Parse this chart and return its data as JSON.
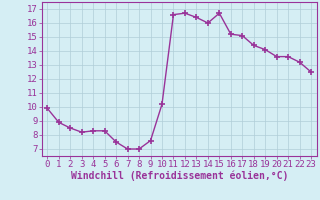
{
  "x": [
    0,
    1,
    2,
    3,
    4,
    5,
    6,
    7,
    8,
    9,
    10,
    11,
    12,
    13,
    14,
    15,
    16,
    17,
    18,
    19,
    20,
    21,
    22,
    23
  ],
  "y": [
    9.9,
    8.9,
    8.5,
    8.2,
    8.3,
    8.3,
    7.5,
    7.0,
    7.0,
    7.6,
    10.2,
    16.6,
    16.7,
    16.4,
    16.0,
    16.7,
    15.2,
    15.1,
    14.4,
    14.1,
    13.6,
    13.6,
    13.2,
    12.5
  ],
  "line_color": "#993399",
  "marker_color": "#993399",
  "bg_color": "#d5eef4",
  "grid_color": "#b0cdd8",
  "axis_color": "#993399",
  "tick_color": "#993399",
  "xlabel": "Windchill (Refroidissement éolien,°C)",
  "ylim": [
    6.5,
    17.5
  ],
  "xlim": [
    -0.5,
    23.5
  ],
  "yticks": [
    7,
    8,
    9,
    10,
    11,
    12,
    13,
    14,
    15,
    16,
    17
  ],
  "xticks": [
    0,
    1,
    2,
    3,
    4,
    5,
    6,
    7,
    8,
    9,
    10,
    11,
    12,
    13,
    14,
    15,
    16,
    17,
    18,
    19,
    20,
    21,
    22,
    23
  ],
  "font_size": 6.5,
  "xlabel_font_size": 7,
  "marker_size": 4,
  "line_width": 1
}
